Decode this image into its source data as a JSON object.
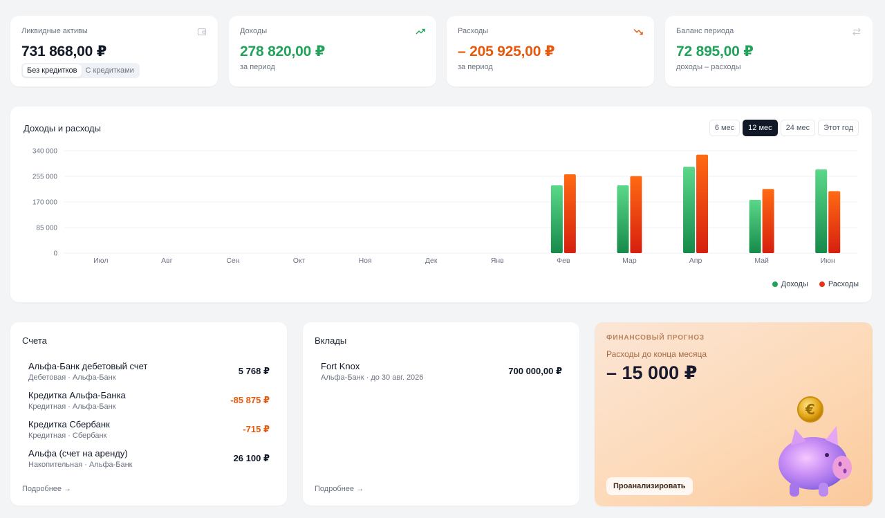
{
  "stats": [
    {
      "label": "Ликвидные активы",
      "value": "731 868,00 ₽",
      "toggle": [
        "Без кредитков",
        "С кредитками"
      ]
    },
    {
      "label": "Доходы",
      "value": "278 820,00 ₽",
      "sub": "за период"
    },
    {
      "label": "Расходы",
      "value": "– 205 925,00 ₽",
      "sub": "за период"
    },
    {
      "label": "Баланс периода",
      "value": "72 895,00 ₽",
      "sub": "доходы – расходы"
    }
  ],
  "chart": {
    "title": "Доходы и расходы",
    "periods": [
      "6 мес",
      "12 мес",
      "24 мес",
      "Этот год"
    ],
    "active_period": "12 мес"
  },
  "chart_data": {
    "type": "bar",
    "categories": [
      "Июл",
      "Авг",
      "Сен",
      "Окт",
      "Ноя",
      "Дек",
      "Янв",
      "Фев",
      "Мар",
      "Апр",
      "Май",
      "Июн"
    ],
    "series": [
      {
        "name": "Доходы",
        "values": [
          0,
          0,
          0,
          0,
          0,
          0,
          0,
          225000,
          225000,
          287000,
          177000,
          278000
        ]
      },
      {
        "name": "Расходы",
        "values": [
          0,
          0,
          0,
          0,
          0,
          0,
          0,
          262000,
          256000,
          327000,
          213000,
          206000
        ]
      }
    ],
    "y_ticks": [
      "340 000",
      "255 000",
      "170 000",
      "85 000",
      "0"
    ],
    "ylim": [
      0,
      340000
    ],
    "legend_position": "bottom-right",
    "colors": {
      "income": "#22a35a",
      "expense": "#e8590c"
    }
  },
  "accounts": {
    "title": "Счета",
    "items": [
      {
        "name": "Альфа-Банк дебетовый счет",
        "sub": "Дебетовая · Альфа-Банк",
        "amount": "5 768 ₽",
        "negative": false
      },
      {
        "name": "Кредитка Альфа-Банка",
        "sub": "Кредитная · Альфа-Банк",
        "amount": "-85 875 ₽",
        "negative": true
      },
      {
        "name": "Кредитка Сбербанк",
        "sub": "Кредитная · Сбербанк",
        "amount": "-715 ₽",
        "negative": true
      },
      {
        "name": "Альфа (счет на аренду)",
        "sub": "Накопительная · Альфа-Банк",
        "amount": "26 100 ₽",
        "negative": false
      }
    ],
    "more": "Подробнее →"
  },
  "deposits": {
    "title": "Вклады",
    "items": [
      {
        "name": "Fort Knox",
        "sub": "Альфа-Банк · до 30 авг. 2026",
        "amount": "700 000,00 ₽"
      }
    ],
    "more": "Подробнее →"
  },
  "forecast": {
    "kicker": "ФИНАНСОВЫЙ ПРОГНОЗ",
    "subtitle": "Расходы до конца месяца",
    "value": "– 15 000 ₽",
    "button": "Проанализировать",
    "coin_symbol": "€"
  },
  "icons": [
    "wallet-icon",
    "trend-up-icon",
    "trend-down-icon",
    "swap-icon",
    "piggy-bank-icon"
  ]
}
